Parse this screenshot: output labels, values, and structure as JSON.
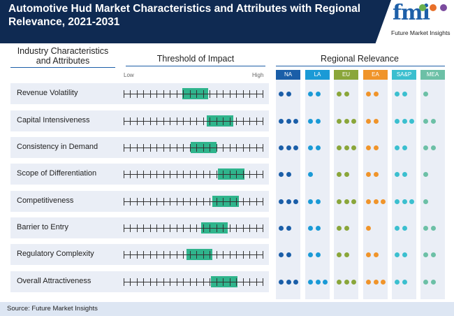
{
  "title": "Automotive Hud Market Characteristics and Attributes with Regional Relevance, 2021-2031",
  "logo": {
    "text": "fmi",
    "subtitle": "Future Market Insights"
  },
  "headers": {
    "industry": "Industry Characteristics and Attributes",
    "threshold": "Threshold of Impact",
    "regional": "Regional Relevance",
    "low": "Low",
    "high": "High"
  },
  "regions": [
    {
      "name": "NA",
      "color": "#1a5ea8"
    },
    {
      "name": "LA",
      "color": "#1a9ad6"
    },
    {
      "name": "EU",
      "color": "#8aa63a"
    },
    {
      "name": "EA",
      "color": "#f0942a"
    },
    {
      "name": "SA&P",
      "color": "#3bbfcf"
    },
    {
      "name": "MEA",
      "color": "#6cc0a6"
    }
  ],
  "rows": [
    {
      "label": "Revenue Volatility",
      "impact_start": 0.42,
      "impact_end": 0.61,
      "relevance": [
        2,
        2,
        2,
        2,
        2,
        1
      ]
    },
    {
      "label": "Capital Intensiveness",
      "impact_start": 0.6,
      "impact_end": 0.79,
      "relevance": [
        3,
        2,
        3,
        2,
        3,
        2
      ]
    },
    {
      "label": "Consistency in Demand",
      "impact_start": 0.48,
      "impact_end": 0.67,
      "relevance": [
        3,
        2,
        3,
        2,
        2,
        2
      ]
    },
    {
      "label": "Scope of Differentiation",
      "impact_start": 0.68,
      "impact_end": 0.87,
      "relevance": [
        2,
        1,
        2,
        2,
        2,
        1
      ]
    },
    {
      "label": "Competitiveness",
      "impact_start": 0.64,
      "impact_end": 0.83,
      "relevance": [
        3,
        2,
        3,
        3,
        3,
        1
      ]
    },
    {
      "label": "Barrier to Entry",
      "impact_start": 0.56,
      "impact_end": 0.75,
      "relevance": [
        2,
        2,
        2,
        1,
        2,
        2
      ]
    },
    {
      "label": "Regulatory Complexity",
      "impact_start": 0.45,
      "impact_end": 0.64,
      "relevance": [
        2,
        2,
        2,
        2,
        2,
        2
      ]
    },
    {
      "label": "Overall Attractiveness",
      "impact_start": 0.63,
      "impact_end": 0.82,
      "relevance": [
        3,
        3,
        3,
        3,
        2,
        2
      ]
    }
  ],
  "impact_color": "#2fb48c",
  "footer": "Source: Future Market Insights"
}
